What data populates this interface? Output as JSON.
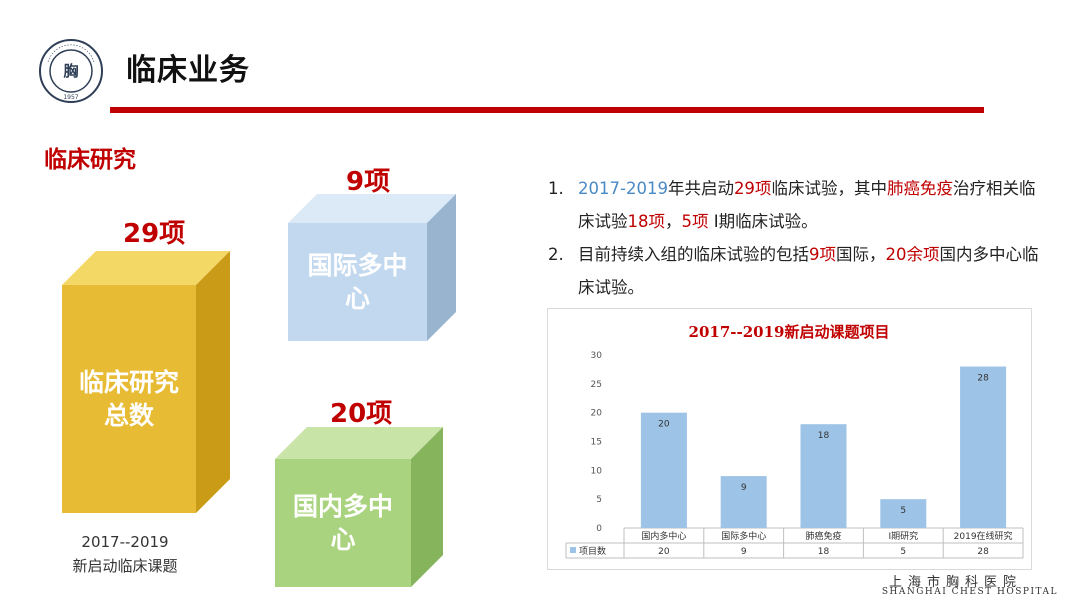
{
  "header": {
    "title": "临床业务",
    "logo_text": "SHANGHAI CHEST HOSPITAL 1957"
  },
  "section_title": "临床研究",
  "boxes": [
    {
      "label": "临床研究\n总数",
      "count": "29项",
      "front": "#e8bb35",
      "top": "#f4d866",
      "side": "#c99b16"
    },
    {
      "label": "国际多中\n心",
      "count": "9项",
      "front": "#c2d8ee",
      "top": "#dce9f6",
      "side": "#98b4cf"
    },
    {
      "label": "国内多中\n心",
      "count": "20项",
      "front": "#a9d37e",
      "top": "#c8e4a7",
      "side": "#86b45c"
    }
  ],
  "caption": {
    "line1": "2017--2019",
    "line2": "新启动临床课题"
  },
  "notes": [
    {
      "num": "1.",
      "parts": [
        {
          "t": "2017-2019",
          "c": "blue"
        },
        {
          "t": "年共启动",
          "c": ""
        },
        {
          "t": "29项",
          "c": "red"
        },
        {
          "t": "临床试验，其中",
          "c": ""
        },
        {
          "t": "肺癌免疫",
          "c": "red"
        },
        {
          "t": "治疗相关临床试验",
          "c": ""
        },
        {
          "t": "18项",
          "c": "red"
        },
        {
          "t": "，",
          "c": ""
        },
        {
          "t": "5项",
          "c": "red"
        },
        {
          "t": " I期临床试验。",
          "c": ""
        }
      ]
    },
    {
      "num": "2.",
      "parts": [
        {
          "t": "目前持续入组的临床试验的包括",
          "c": ""
        },
        {
          "t": "9项",
          "c": "red"
        },
        {
          "t": "国际，",
          "c": ""
        },
        {
          "t": "20余项",
          "c": "red"
        },
        {
          "t": "国内多中心临床试验。",
          "c": ""
        }
      ]
    }
  ],
  "colors": {
    "accent_red": "#c00000",
    "bar": "#9dc3e6",
    "highlight_blue": "#4a8ac4"
  },
  "chart_data": {
    "type": "bar",
    "title": "2017--2019新启动课题项目",
    "categories": [
      "国内多中心",
      "国际多中心",
      "肺癌免疫",
      "I期研究",
      "2019在线研究"
    ],
    "series": [
      {
        "name": "项目数",
        "values": [
          20,
          9,
          18,
          5,
          28
        ]
      }
    ],
    "ylim": [
      0,
      30
    ],
    "yticks": [
      0,
      5,
      10,
      15,
      20,
      25,
      30
    ],
    "data_labels": true,
    "data_table": true,
    "grid": false
  },
  "footer": {
    "cn": "上海市胸科医院",
    "en": "SHANGHAI CHEST HOSPITAL"
  }
}
